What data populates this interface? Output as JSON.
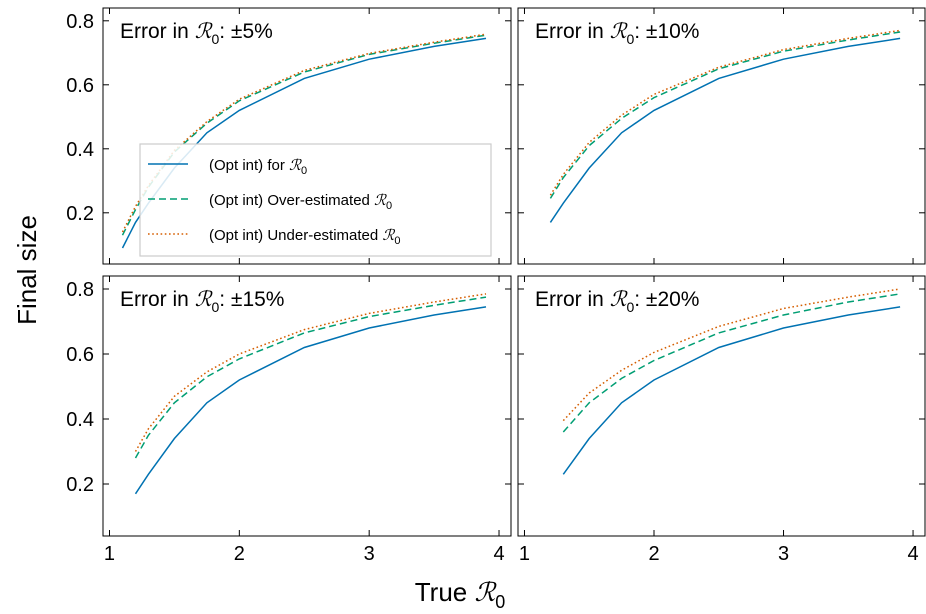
{
  "figure": {
    "ylabel": "Final size",
    "xlabel_prefix": "True ",
    "r0_symbol": "ℛ",
    "r0_subscript": "0"
  },
  "legend": {
    "entries": [
      {
        "prefix": "(Opt int) for ",
        "color": "#0072b2",
        "dash": "solid"
      },
      {
        "prefix": "(Opt int) Over-estimated ",
        "color": "#009e73",
        "dash": "dashed"
      },
      {
        "prefix": "(Opt int) Under-estimated ",
        "color": "#d55e00",
        "dash": "dotted"
      }
    ]
  },
  "chart_data": [
    {
      "type": "line",
      "title_prefix": "Error in ",
      "title_suffix": ": ±5%",
      "xlim": [
        0.95,
        4.1
      ],
      "ylim": [
        0.04,
        0.84
      ],
      "xticks": [
        1,
        2,
        3,
        4
      ],
      "yticks": [
        0.2,
        0.4,
        0.6,
        0.8
      ],
      "xtick_labels_visible": false,
      "ytick_labels_visible": true,
      "legend_position": "center-left",
      "series": [
        {
          "name": "(Opt int) for ℛ0",
          "color": "#0072b2",
          "dash": "solid",
          "x": [
            1.1,
            1.2,
            1.3,
            1.5,
            1.75,
            2.0,
            2.5,
            3.0,
            3.5,
            3.9
          ],
          "y": [
            0.09,
            0.17,
            0.23,
            0.34,
            0.45,
            0.52,
            0.62,
            0.68,
            0.72,
            0.745
          ]
        },
        {
          "name": "(Opt int) Over-estimated ℛ0",
          "color": "#009e73",
          "dash": "dashed",
          "x": [
            1.1,
            1.2,
            1.3,
            1.5,
            1.75,
            2.0,
            2.5,
            3.0,
            3.5,
            3.9
          ],
          "y": [
            0.13,
            0.21,
            0.28,
            0.39,
            0.48,
            0.55,
            0.64,
            0.695,
            0.73,
            0.755
          ]
        },
        {
          "name": "(Opt int) Under-estimated ℛ0",
          "color": "#d55e00",
          "dash": "dotted",
          "x": [
            1.1,
            1.2,
            1.3,
            1.5,
            1.75,
            2.0,
            2.5,
            3.0,
            3.5,
            3.9
          ],
          "y": [
            0.14,
            0.22,
            0.285,
            0.395,
            0.485,
            0.555,
            0.645,
            0.698,
            0.733,
            0.758
          ]
        }
      ]
    },
    {
      "type": "line",
      "title_prefix": "Error in ",
      "title_suffix": ": ±10%",
      "xlim": [
        0.95,
        4.1
      ],
      "ylim": [
        0.04,
        0.84
      ],
      "xticks": [
        1,
        2,
        3,
        4
      ],
      "yticks": [
        0.2,
        0.4,
        0.6,
        0.8
      ],
      "xtick_labels_visible": false,
      "ytick_labels_visible": false,
      "series": [
        {
          "name": "(Opt int) for ℛ0",
          "color": "#0072b2",
          "dash": "solid",
          "x": [
            1.2,
            1.3,
            1.5,
            1.75,
            2.0,
            2.5,
            3.0,
            3.5,
            3.9
          ],
          "y": [
            0.17,
            0.23,
            0.34,
            0.45,
            0.52,
            0.62,
            0.68,
            0.72,
            0.745
          ]
        },
        {
          "name": "(Opt int) Over-estimated ℛ0",
          "color": "#009e73",
          "dash": "dashed",
          "x": [
            1.2,
            1.3,
            1.5,
            1.75,
            2.0,
            2.5,
            3.0,
            3.5,
            3.9
          ],
          "y": [
            0.245,
            0.31,
            0.41,
            0.495,
            0.56,
            0.65,
            0.705,
            0.74,
            0.765
          ]
        },
        {
          "name": "(Opt int) Under-estimated ℛ0",
          "color": "#d55e00",
          "dash": "dotted",
          "x": [
            1.2,
            1.3,
            1.5,
            1.75,
            2.0,
            2.5,
            3.0,
            3.5,
            3.9
          ],
          "y": [
            0.255,
            0.32,
            0.42,
            0.505,
            0.57,
            0.655,
            0.71,
            0.745,
            0.77
          ]
        }
      ]
    },
    {
      "type": "line",
      "title_prefix": "Error in ",
      "title_suffix": ": ±15%",
      "xlim": [
        0.95,
        4.1
      ],
      "ylim": [
        0.04,
        0.84
      ],
      "xticks": [
        1,
        2,
        3,
        4
      ],
      "yticks": [
        0.2,
        0.4,
        0.6,
        0.8
      ],
      "xtick_labels_visible": true,
      "ytick_labels_visible": true,
      "series": [
        {
          "name": "(Opt int) for ℛ0",
          "color": "#0072b2",
          "dash": "solid",
          "x": [
            1.2,
            1.3,
            1.5,
            1.75,
            2.0,
            2.5,
            3.0,
            3.5,
            3.9
          ],
          "y": [
            0.17,
            0.23,
            0.34,
            0.45,
            0.52,
            0.62,
            0.68,
            0.72,
            0.745
          ]
        },
        {
          "name": "(Opt int) Over-estimated ℛ0",
          "color": "#009e73",
          "dash": "dashed",
          "x": [
            1.2,
            1.3,
            1.5,
            1.75,
            2.0,
            2.5,
            3.0,
            3.5,
            3.9
          ],
          "y": [
            0.28,
            0.35,
            0.45,
            0.53,
            0.585,
            0.665,
            0.715,
            0.75,
            0.775
          ]
        },
        {
          "name": "(Opt int) Under-estimated ℛ0",
          "color": "#d55e00",
          "dash": "dotted",
          "x": [
            1.2,
            1.3,
            1.5,
            1.75,
            2.0,
            2.5,
            3.0,
            3.5,
            3.9
          ],
          "y": [
            0.3,
            0.37,
            0.47,
            0.545,
            0.6,
            0.675,
            0.725,
            0.76,
            0.785
          ]
        }
      ]
    },
    {
      "type": "line",
      "title_prefix": "Error in ",
      "title_suffix": ": ±20%",
      "xlim": [
        0.95,
        4.1
      ],
      "ylim": [
        0.04,
        0.84
      ],
      "xticks": [
        1,
        2,
        3,
        4
      ],
      "yticks": [
        0.2,
        0.4,
        0.6,
        0.8
      ],
      "xtick_labels_visible": true,
      "ytick_labels_visible": false,
      "series": [
        {
          "name": "(Opt int) for ℛ0",
          "color": "#0072b2",
          "dash": "solid",
          "x": [
            1.3,
            1.5,
            1.75,
            2.0,
            2.5,
            3.0,
            3.5,
            3.9
          ],
          "y": [
            0.23,
            0.34,
            0.45,
            0.52,
            0.62,
            0.68,
            0.72,
            0.745
          ]
        },
        {
          "name": "(Opt int) Over-estimated ℛ0",
          "color": "#009e73",
          "dash": "dashed",
          "x": [
            1.3,
            1.5,
            1.75,
            2.0,
            2.5,
            3.0,
            3.5,
            3.9
          ],
          "y": [
            0.36,
            0.45,
            0.525,
            0.58,
            0.665,
            0.72,
            0.76,
            0.785
          ]
        },
        {
          "name": "(Opt int) Under-estimated ℛ0",
          "color": "#d55e00",
          "dash": "dotted",
          "x": [
            1.3,
            1.5,
            1.75,
            2.0,
            2.5,
            3.0,
            3.5,
            3.9
          ],
          "y": [
            0.395,
            0.48,
            0.55,
            0.605,
            0.685,
            0.74,
            0.775,
            0.8
          ]
        }
      ]
    }
  ]
}
